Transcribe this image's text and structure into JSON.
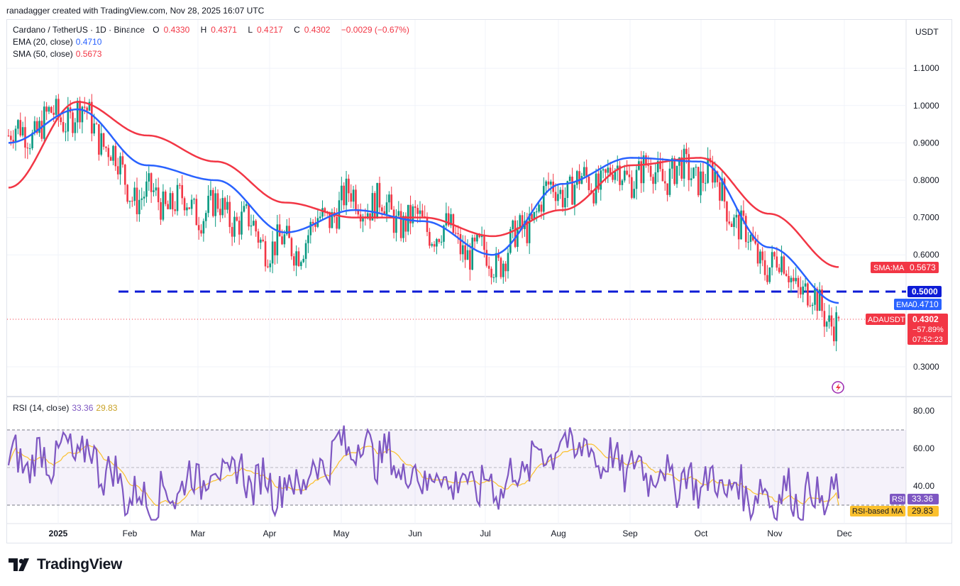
{
  "credit": "ranadagger created with TradingView.com, Nov 28, 2025 16:07 UTC",
  "legend": {
    "symbol": "Cardano / TetherUS · 1D · Binance",
    "ohlc": {
      "o_label": "O",
      "o": "0.4330",
      "h_label": "H",
      "h": "0.4371",
      "l_label": "L",
      "l": "0.4217",
      "c_label": "C",
      "c": "0.4302",
      "change": "−0.0029 (−0.67%)"
    },
    "ema_label": "EMA (20, close)",
    "ema_value": "0.4710",
    "sma_label": "SMA (50, close)",
    "sma_value": "0.5673",
    "rsi_label": "RSI (14, close)",
    "rsi_value": "33.36",
    "rsi_ma_value": "29.83"
  },
  "price_axis": {
    "currency": "USDT",
    "ticks": [
      "1.1000",
      "1.0000",
      "0.9000",
      "0.8000",
      "0.7000",
      "0.6000",
      "0.3000"
    ]
  },
  "rsi_axis": {
    "ticks": [
      "80.00",
      "60.00",
      "40.00"
    ]
  },
  "time_axis": [
    "2025",
    "Feb",
    "Mar",
    "Apr",
    "May",
    "Jun",
    "Jul",
    "Aug",
    "Sep",
    "Oct",
    "Nov",
    "Dec"
  ],
  "badges": {
    "sma": {
      "label": "SMA:MA",
      "value": "0.5673"
    },
    "support": {
      "value": "0.5000"
    },
    "ema": {
      "label": "EMA",
      "value": "0.4710"
    },
    "price": {
      "label": "ADAUSDT",
      "value": "0.4302",
      "pct": "−57.89%",
      "countdown": "07:52:23"
    },
    "rsi": {
      "label": "RSI",
      "value": "33.36"
    },
    "rsi_ma": {
      "label": "RSI-based MA",
      "value": "29.83"
    }
  },
  "brand": "TradingView",
  "colors": {
    "up": "#089981",
    "down": "#f23645",
    "ema": "#2962ff",
    "sma": "#f23645",
    "rsi": "#7e57c2",
    "rsi_ma": "#fbc02d",
    "support": "#0d1bd6"
  },
  "chart_data": {
    "type": "candlestick",
    "symbol": "ADAUSDT",
    "interval": "1D",
    "price_range": [
      0.27,
      1.18
    ],
    "rsi_range": [
      20,
      87
    ],
    "support_level": 0.5,
    "rsi_bands": [
      30,
      50,
      70
    ],
    "monthly_anchors": [
      {
        "month": "Dec",
        "price": 0.92,
        "ema": 0.9,
        "sma": 0.78,
        "rsi": 52
      },
      {
        "month": "Jan",
        "price": 0.98,
        "ema": 0.99,
        "sma": 1.01,
        "rsi": 58
      },
      {
        "month": "Feb",
        "price": 0.75,
        "ema": 0.84,
        "sma": 0.92,
        "rsi": 32
      },
      {
        "month": "Mar",
        "price": 0.72,
        "ema": 0.8,
        "sma": 0.85,
        "rsi": 48
      },
      {
        "month": "Apr",
        "price": 0.62,
        "ema": 0.66,
        "sma": 0.74,
        "rsi": 40
      },
      {
        "month": "May",
        "price": 0.75,
        "ema": 0.72,
        "sma": 0.7,
        "rsi": 62
      },
      {
        "month": "Jun",
        "price": 0.68,
        "ema": 0.69,
        "sma": 0.7,
        "rsi": 45
      },
      {
        "month": "Jul",
        "price": 0.59,
        "ema": 0.6,
        "sma": 0.65,
        "rsi": 40
      },
      {
        "month": "Aug",
        "price": 0.78,
        "ema": 0.79,
        "sma": 0.72,
        "rsi": 62
      },
      {
        "month": "Sep",
        "price": 0.82,
        "ema": 0.86,
        "sma": 0.84,
        "rsi": 50
      },
      {
        "month": "Oct",
        "price": 0.82,
        "ema": 0.85,
        "sma": 0.86,
        "rsi": 42
      },
      {
        "month": "Nov",
        "price": 0.58,
        "ema": 0.62,
        "sma": 0.71,
        "rsi": 35
      },
      {
        "month": "Nov 28",
        "price": 0.4302,
        "ema": 0.471,
        "sma": 0.5673,
        "rsi": 33.36
      }
    ],
    "current": {
      "open": 0.433,
      "high": 0.4371,
      "low": 0.4217,
      "close": 0.4302,
      "ema20": 0.471,
      "sma50": 0.5673,
      "rsi": 33.36,
      "rsi_ma": 29.83
    }
  }
}
